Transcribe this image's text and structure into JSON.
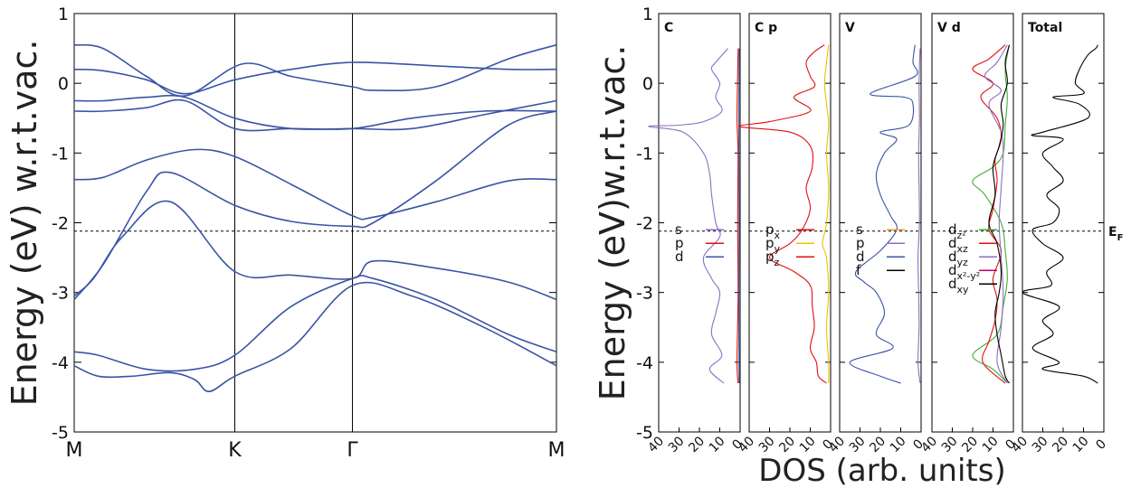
{
  "colors": {
    "band": "#3a54a5",
    "C_s": "#8e6fc0",
    "C_p": "#e01010",
    "C_d": "#3a54a5",
    "p_x": "#e01010",
    "p_y": "#f0c000",
    "p_z": "#e01010",
    "V_s": "#f0a030",
    "V_p": "#8e6fc0",
    "V_d": "#3a54a5",
    "V_f": "#000000",
    "d_z2": "#40b030",
    "d_xz": "#e01010",
    "d_yz": "#8e6fc0",
    "d_x2y2": "#c00060",
    "d_xy": "#000000",
    "total": "#000000"
  },
  "chart_data": [
    {
      "type": "line",
      "ylabel": "Energy (eV) w.r.t.vac.",
      "ylim": [
        -5,
        1
      ],
      "yticks": [
        "1",
        "0",
        "-1",
        "-2",
        "-3",
        "-4",
        "-5"
      ],
      "kpath": [
        "M",
        "K",
        "Γ",
        "M"
      ],
      "kpos": [
        0,
        0.333,
        0.577,
        1
      ],
      "fermi": -2.12,
      "series": [
        {
          "x": [
            0,
            0.06,
            0.15,
            0.23,
            0.333,
            0.45,
            0.577,
            0.75,
            0.9,
            1
          ],
          "values": [
            0.2,
            0.18,
            0.05,
            -0.15,
            0.05,
            0.2,
            0.3,
            0.25,
            0.2,
            0.2
          ]
        },
        {
          "x": [
            0,
            0.06,
            0.15,
            0.23,
            0.35,
            0.45,
            0.577,
            0.62,
            0.75,
            0.9,
            1
          ],
          "values": [
            0.55,
            0.5,
            0.1,
            -0.18,
            0.28,
            0.1,
            -0.05,
            -0.1,
            -0.05,
            0.35,
            0.55
          ]
        },
        {
          "x": [
            0,
            0.06,
            0.15,
            0.23,
            0.333,
            0.45,
            0.577,
            0.7,
            0.85,
            1
          ],
          "values": [
            -0.25,
            -0.25,
            -0.2,
            -0.2,
            -0.5,
            -0.65,
            -0.65,
            -0.65,
            -0.45,
            -0.25
          ]
        },
        {
          "x": [
            0,
            0.06,
            0.15,
            0.23,
            0.333,
            0.45,
            0.577,
            0.7,
            0.85,
            1
          ],
          "values": [
            -0.4,
            -0.4,
            -0.35,
            -0.25,
            -0.65,
            -0.65,
            -0.65,
            -0.5,
            -0.4,
            -0.4
          ]
        },
        {
          "x": [
            0,
            0.06,
            0.15,
            0.25,
            0.333,
            0.45,
            0.577,
            0.62,
            0.75,
            0.9,
            1
          ],
          "values": [
            -1.38,
            -1.35,
            -1.1,
            -0.95,
            -1.05,
            -1.45,
            -1.9,
            -1.92,
            -1.7,
            -1.4,
            -1.38
          ]
        },
        {
          "x": [
            0,
            0.06,
            0.15,
            0.2,
            0.333,
            0.45,
            0.577,
            0.62,
            0.75,
            0.9,
            1
          ],
          "values": [
            -3.1,
            -2.6,
            -1.55,
            -1.28,
            -1.75,
            -1.98,
            -2.05,
            -2.0,
            -1.4,
            -0.6,
            -0.4
          ]
        },
        {
          "x": [
            0,
            0.04,
            0.1,
            0.2,
            0.333,
            0.45,
            0.577,
            0.62,
            0.75,
            0.9,
            1
          ],
          "values": [
            -3.05,
            -2.8,
            -2.2,
            -1.7,
            -2.7,
            -2.75,
            -2.8,
            -2.55,
            -2.65,
            -2.85,
            -3.1
          ]
        },
        {
          "x": [
            0,
            0.05,
            0.15,
            0.25,
            0.333,
            0.45,
            0.577,
            0.62,
            0.75,
            0.9,
            1
          ],
          "values": [
            -3.85,
            -3.9,
            -4.1,
            -4.1,
            -3.9,
            -3.2,
            -2.8,
            -2.8,
            -3.1,
            -3.6,
            -3.85
          ]
        },
        {
          "x": [
            0,
            0.05,
            0.12,
            0.2,
            0.25,
            0.28,
            0.333,
            0.45,
            0.577,
            0.7,
            0.85,
            1
          ],
          "values": [
            -4.05,
            -4.2,
            -4.2,
            -4.15,
            -4.25,
            -4.42,
            -4.2,
            -3.8,
            -2.9,
            -3.05,
            -3.5,
            -4.05
          ]
        }
      ]
    },
    {
      "type": "line",
      "ylabel": "Energy (eV)w.r.t.vac.",
      "xlabel": "DOS (arb. units)",
      "ylim": [
        -5,
        1
      ],
      "xlim": [
        40,
        0
      ],
      "fermi": -2.12,
      "fermi_label": "E",
      "fermi_label_sub": "F",
      "yticks": [
        "1",
        "0",
        "-1",
        "-2",
        "-3",
        "-4",
        "-5"
      ],
      "xticks": [
        "40",
        "30",
        "20",
        "10",
        "0"
      ],
      "panels": [
        {
          "label": "C",
          "legend": [
            {
              "t": "s",
              "color": "C_s"
            },
            {
              "t": "p",
              "color": "C_p"
            },
            {
              "t": "d",
              "color": "C_d"
            }
          ],
          "series": [
            {
              "color": "C_s",
              "y": [
                0.5,
                0.3,
                0.2,
                0.0,
                -0.2,
                -0.4,
                -0.55,
                -0.6,
                -0.62,
                -0.7,
                -1.0,
                -1.3,
                -1.6,
                -2.0,
                -2.2,
                -2.5,
                -2.8,
                -3.0,
                -3.3,
                -3.6,
                -3.9,
                -4.1,
                -4.3
              ],
              "v": [
                6,
                12,
                14,
                10,
                12,
                9,
                18,
                30,
                45,
                28,
                18,
                15,
                14,
                12,
                10,
                18,
                14,
                10,
                12,
                14,
                9,
                15,
                8
              ]
            },
            {
              "color": "C_p",
              "y": [
                0.5,
                -0.5,
                -1.0,
                -2.0,
                -3.0,
                -4.0,
                -4.3
              ],
              "v": [
                1,
                1.5,
                1,
                1.2,
                1,
                1.5,
                1
              ]
            },
            {
              "color": "C_d",
              "y": [
                0.5,
                -1.0,
                -2.0,
                -3.0,
                -4.3
              ],
              "v": [
                0.5,
                0.6,
                0.5,
                0.6,
                0.5
              ]
            }
          ]
        },
        {
          "label": "C p",
          "legend": [
            {
              "t": "p",
              "sub": "x",
              "color": "p_x"
            },
            {
              "t": "p",
              "sub": "y",
              "color": "p_y"
            },
            {
              "t": "p",
              "sub": "z",
              "color": "p_z"
            }
          ],
          "series": [
            {
              "color": "p_y",
              "y": [
                0.55,
                0.3,
                0.0,
                -0.3,
                -0.6,
                -1.0,
                -1.5,
                -2.0,
                -2.3,
                -2.5,
                -3.0,
                -3.5,
                -4.0,
                -4.3
              ],
              "v": [
                1,
                2,
                3,
                2,
                1,
                2,
                1,
                2,
                4,
                2,
                1,
                2,
                1,
                1
              ]
            },
            {
              "color": "p_x",
              "y": [
                0.55,
                0.45,
                0.3,
                0.1,
                -0.05,
                -0.2,
                -0.4,
                -0.55,
                -0.62,
                -0.7,
                -0.9,
                -1.2,
                -1.5,
                -1.8,
                -2.1,
                -2.3,
                -2.5,
                -2.7,
                -2.9,
                -3.2,
                -3.5,
                -3.8,
                -4.0,
                -4.2,
                -4.3
              ],
              "v": [
                3,
                8,
                12,
                10,
                8,
                18,
                10,
                30,
                45,
                20,
                10,
                9,
                12,
                10,
                14,
                20,
                30,
                18,
                10,
                9,
                8,
                10,
                7,
                6,
                2
              ]
            }
          ]
        },
        {
          "label": "V",
          "legend": [
            {
              "t": "s",
              "color": "V_s"
            },
            {
              "t": "p",
              "color": "V_p"
            },
            {
              "t": "d",
              "color": "V_d"
            },
            {
              "t": "f",
              "color": "V_f"
            }
          ],
          "series": [
            {
              "color": "V_p",
              "y": [
                0.5,
                0.0,
                -0.5,
                -1.0,
                -1.5,
                -2.0,
                -2.5,
                -3.0,
                -3.5,
                -4.0,
                -4.3
              ],
              "v": [
                0.5,
                1,
                0.8,
                1.2,
                1,
                0.8,
                1.5,
                1.2,
                1,
                1.5,
                0.5
              ]
            },
            {
              "color": "V_d",
              "y": [
                0.55,
                0.3,
                0.1,
                -0.15,
                -0.2,
                -0.3,
                -0.6,
                -0.7,
                -0.8,
                -1.0,
                -1.3,
                -1.6,
                -1.9,
                -2.1,
                -2.4,
                -2.7,
                -2.85,
                -3.0,
                -3.3,
                -3.6,
                -3.8,
                -4.0,
                -4.2,
                -4.3
              ],
              "v": [
                3,
                4,
                3,
                25,
                8,
                4,
                6,
                20,
                12,
                18,
                22,
                20,
                15,
                12,
                20,
                32,
                28,
                22,
                18,
                22,
                14,
                35,
                20,
                10
              ]
            }
          ]
        },
        {
          "label": "V d",
          "legend": [
            {
              "t": "d",
              "sub": "z²",
              "color": "d_z2"
            },
            {
              "t": "d",
              "sub": "xz",
              "color": "d_xz"
            },
            {
              "t": "d",
              "sub": "yz",
              "color": "d_yz"
            },
            {
              "t": "d",
              "sub": "x²-y²",
              "color": "d_x2y2"
            },
            {
              "t": "d",
              "sub": "xy",
              "color": "d_xy"
            }
          ],
          "series": [
            {
              "color": "d_z2",
              "y": [
                0.55,
                0.2,
                -0.2,
                -0.6,
                -1.0,
                -1.2,
                -1.4,
                -1.6,
                -2.0,
                -2.4,
                -2.8,
                -3.2,
                -3.6,
                -3.9,
                -4.1,
                -4.3
              ],
              "v": [
                2,
                4,
                3,
                4,
                5,
                10,
                20,
                14,
                6,
                4,
                3,
                5,
                8,
                20,
                10,
                3
              ]
            },
            {
              "color": "d_xz",
              "y": [
                0.55,
                0.35,
                0.2,
                0.0,
                -0.2,
                -0.5,
                -0.8,
                -1.1,
                -1.4,
                -1.8,
                -2.1,
                -2.4,
                -2.8,
                -3.1,
                -3.4,
                -3.7,
                -4.0,
                -4.3
              ],
              "v": [
                4,
                12,
                20,
                10,
                16,
                8,
                6,
                9,
                8,
                10,
                12,
                6,
                10,
                8,
                9,
                12,
                15,
                4
              ]
            },
            {
              "color": "d_yz",
              "y": [
                0.55,
                0.3,
                0.1,
                -0.1,
                -0.3,
                -0.7,
                -1.0,
                -1.5,
                -2.0,
                -2.5,
                -3.0,
                -3.5,
                -4.0,
                -4.3
              ],
              "v": [
                3,
                8,
                14,
                6,
                12,
                6,
                5,
                6,
                7,
                6,
                5,
                6,
                8,
                3
              ]
            },
            {
              "color": "d_xy",
              "y": [
                0.55,
                0.3,
                0.0,
                -0.3,
                -0.6,
                -0.9,
                -1.2,
                -1.6,
                -2.0,
                -2.3,
                -2.7,
                -3.0,
                -3.3,
                -3.6,
                -3.9,
                -4.2,
                -4.3
              ],
              "v": [
                2,
                4,
                3,
                6,
                5,
                7,
                10,
                9,
                12,
                8,
                6,
                7,
                9,
                8,
                6,
                4,
                2
              ]
            }
          ]
        },
        {
          "label": "Total",
          "legend": [],
          "series": [
            {
              "color": "total",
              "y": [
                0.55,
                0.5,
                0.4,
                0.2,
                0.0,
                -0.15,
                -0.2,
                -0.3,
                -0.5,
                -0.7,
                -0.75,
                -0.8,
                -1.0,
                -1.2,
                -1.4,
                -1.6,
                -1.8,
                -2.0,
                -2.1,
                -2.3,
                -2.5,
                -2.7,
                -2.9,
                -3.0,
                -3.2,
                -3.4,
                -3.6,
                -3.8,
                -4.0,
                -4.1,
                -4.2,
                -4.3
              ],
              "v": [
                3,
                4,
                8,
                12,
                14,
                10,
                25,
                12,
                8,
                30,
                35,
                20,
                30,
                25,
                20,
                28,
                22,
                25,
                35,
                30,
                20,
                28,
                26,
                40,
                22,
                30,
                25,
                35,
                22,
                30,
                10,
                3
              ]
            }
          ]
        }
      ]
    }
  ]
}
